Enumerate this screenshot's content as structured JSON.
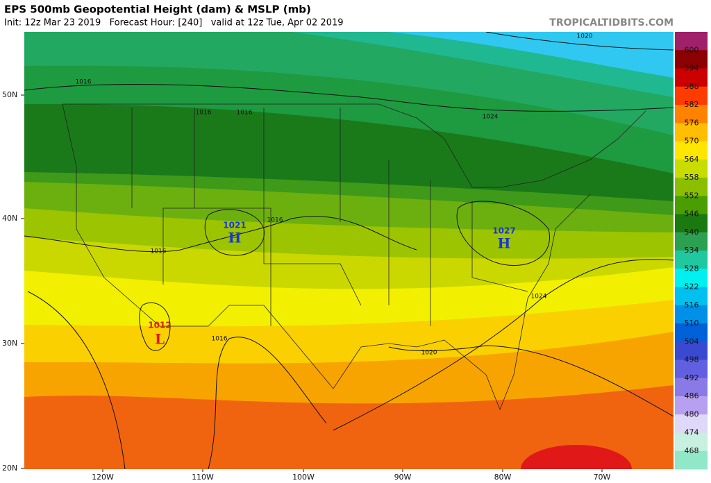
{
  "header": {
    "title": "EPS 500mb Geopotential Height (dam) & MSLP (mb)",
    "subtitle": "Init: 12z Mar 23 2019   Forecast Hour: [240]   valid at 12z Tue, Apr 02 2019",
    "site": "TROPICALTIDBITS.COM"
  },
  "map": {
    "lat_labels": [
      "50N",
      "40N",
      "30N",
      "20N"
    ],
    "lon_labels": [
      "120W",
      "110W",
      "100W",
      "90W",
      "80W",
      "70W"
    ],
    "isobar_labels": [
      1016,
      1016,
      1016,
      1024,
      1020,
      1016,
      1016,
      1016,
      1020,
      1024
    ],
    "pressure_centers": [
      {
        "value": 1021,
        "symbol": "H"
      },
      {
        "value": 1027,
        "symbol": "H"
      },
      {
        "value": 1012,
        "symbol": "L"
      }
    ]
  },
  "colorbar": {
    "levels": [
      600,
      594,
      588,
      582,
      576,
      570,
      564,
      558,
      552,
      546,
      540,
      534,
      528,
      522,
      516,
      510,
      504,
      498,
      492,
      486,
      480,
      474,
      468
    ],
    "colors": [
      "#a0206a",
      "#8b0000",
      "#cc0000",
      "#ff3c00",
      "#ff8200",
      "#ffbe00",
      "#ffe600",
      "#c8dc00",
      "#8cbe00",
      "#4a9e00",
      "#1a7a10",
      "#2aa050",
      "#20c8a0",
      "#00f0f0",
      "#00c0f0",
      "#0090e8",
      "#0060d8",
      "#3a4ad0",
      "#6060e0",
      "#8a7ae8",
      "#b8a0f0",
      "#e0d8f8",
      "#c8f0e0",
      "#90e8c8"
    ]
  }
}
